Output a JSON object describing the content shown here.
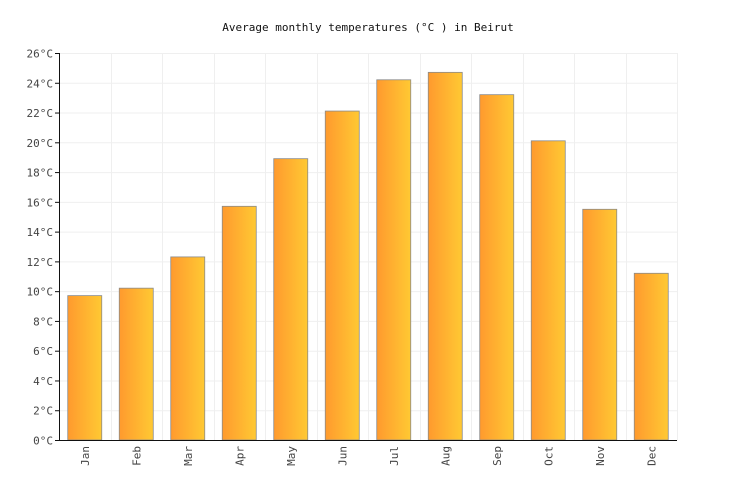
{
  "chart_data": {
    "type": "bar",
    "title": "Average monthly temperatures (°C ) in Beirut",
    "xlabel": "",
    "ylabel": "",
    "categories": [
      "Jan",
      "Feb",
      "Mar",
      "Apr",
      "May",
      "Jun",
      "Jul",
      "Aug",
      "Sep",
      "Oct",
      "Nov",
      "Dec"
    ],
    "values": [
      9.7,
      10.2,
      12.3,
      15.7,
      18.9,
      22.1,
      24.2,
      24.7,
      23.2,
      20.1,
      15.5,
      11.2
    ],
    "ylim": [
      0,
      26
    ],
    "yticks": [
      0,
      2,
      4,
      6,
      8,
      10,
      12,
      14,
      16,
      18,
      20,
      22,
      24,
      26
    ],
    "ytick_labels": [
      "0°C",
      "2°C",
      "4°C",
      "6°C",
      "8°C",
      "10°C",
      "12°C",
      "14°C",
      "16°C",
      "18°C",
      "20°C",
      "22°C",
      "24°C",
      "26°C"
    ],
    "grid": true,
    "bar_color_start": "#ff9a2e",
    "bar_color_end": "#ffc933"
  }
}
